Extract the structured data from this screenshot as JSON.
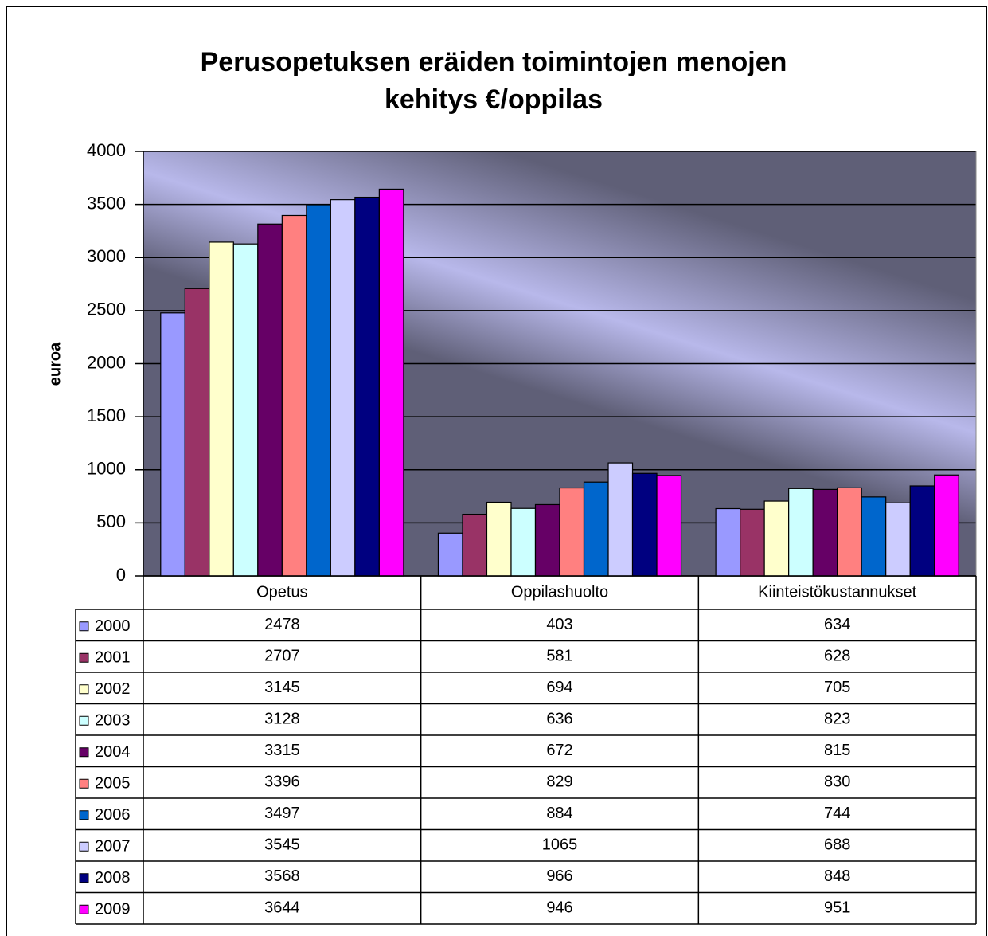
{
  "chart_data": {
    "type": "bar",
    "title": [
      "Perusopetuksen eräiden toimintojen menojen",
      "kehitys  €/oppilas"
    ],
    "y_label": "euroa",
    "categories": [
      "Opetus",
      "Oppilashuolto",
      "Kiinteistökustannukset"
    ],
    "series": [
      {
        "name": "2000",
        "color": "#9999ff",
        "values": [
          2478,
          403,
          634
        ]
      },
      {
        "name": "2001",
        "color": "#993366",
        "values": [
          2707,
          581,
          628
        ]
      },
      {
        "name": "2002",
        "color": "#ffffcc",
        "values": [
          3145,
          694,
          705
        ]
      },
      {
        "name": "2003",
        "color": "#ccffff",
        "values": [
          3128,
          636,
          823
        ]
      },
      {
        "name": "2004",
        "color": "#660066",
        "values": [
          3315,
          672,
          815
        ]
      },
      {
        "name": "2005",
        "color": "#ff8080",
        "values": [
          3396,
          829,
          830
        ]
      },
      {
        "name": "2006",
        "color": "#0066cc",
        "values": [
          3497,
          884,
          744
        ]
      },
      {
        "name": "2007",
        "color": "#ccccff",
        "values": [
          3545,
          1065,
          688
        ]
      },
      {
        "name": "2008",
        "color": "#000080",
        "values": [
          3568,
          966,
          848
        ]
      },
      {
        "name": "2009",
        "color": "#ff00ff",
        "values": [
          3644,
          946,
          951
        ]
      }
    ],
    "ylim": [
      0,
      4000
    ],
    "yticks": [
      0,
      500,
      1000,
      1500,
      2000,
      2500,
      3000,
      3500,
      4000
    ],
    "grid": true,
    "data_table": true
  }
}
